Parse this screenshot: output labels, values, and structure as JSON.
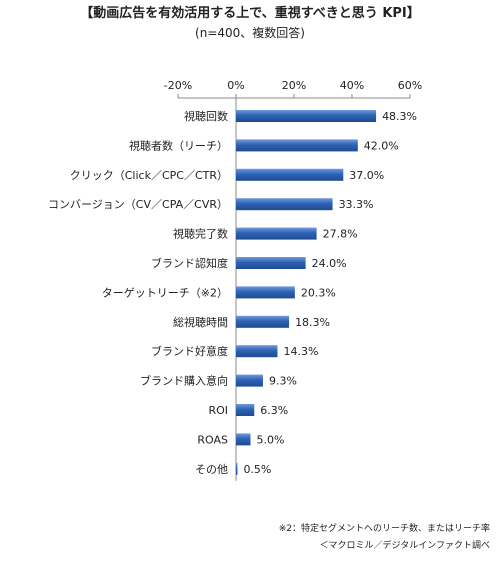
{
  "header": {
    "title": "【動画広告を有効活用する上で、重視すべきと思う KPI】",
    "subtitle": "(n=400、複数回答)"
  },
  "chart_data": {
    "type": "bar",
    "orientation": "horizontal",
    "title": "【動画広告を有効活用する上で、重視すべきと思う KPI】",
    "subtitle": "(n=400、複数回答)",
    "categories": [
      "視聴回数",
      "視聴者数（リーチ）",
      "クリック（Click／CPC／CTR）",
      "コンバージョン（CV／CPA／CVR）",
      "視聴完了数",
      "ブランド認知度",
      "ターゲットリーチ（※2）",
      "総視聴時間",
      "ブランド好意度",
      "ブランド購入意向",
      "ROI",
      "ROAS",
      "その他"
    ],
    "values": [
      48.3,
      42.0,
      37.0,
      33.3,
      27.8,
      24.0,
      20.3,
      18.3,
      14.3,
      9.3,
      6.3,
      5.0,
      0.5
    ],
    "value_labels": [
      "48.3%",
      "42.0%",
      "37.0%",
      "33.3%",
      "27.8%",
      "24.0%",
      "20.3%",
      "18.3%",
      "14.3%",
      "9.3%",
      "6.3%",
      "5.0%",
      "0.5%"
    ],
    "xlim": [
      -20,
      60
    ],
    "xticks": [
      -20,
      0,
      20,
      40,
      60
    ],
    "xtick_labels": [
      "-20%",
      "0%",
      "20%",
      "40%",
      "60%"
    ],
    "xlabel": "",
    "ylabel": "",
    "grid": false,
    "legend": "none",
    "bar_color": "#2e62b4",
    "bar_color_light": "#6f9ae0"
  },
  "notes": {
    "footnote": "※2：特定セグメントへのリーチ数、またはリーチ率",
    "source": "＜マクロミル／デジタルインファクト調べ"
  }
}
